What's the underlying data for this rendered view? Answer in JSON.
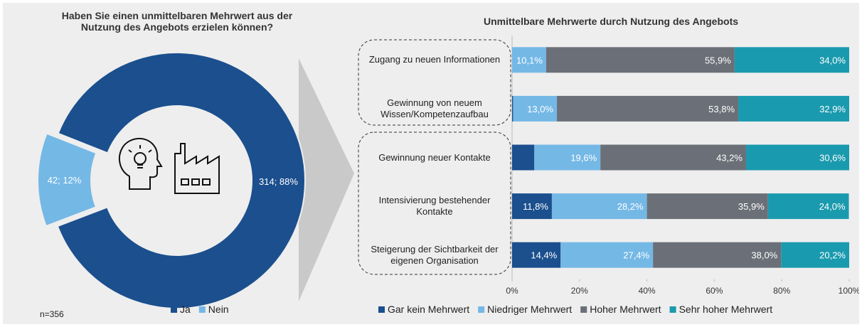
{
  "chart_data": [
    {
      "type": "donut",
      "title": "Haben Sie einen unmittelbaren Mehrwert aus der Nutzung des Angebots erzielen können?",
      "categories": [
        "Ja",
        "Nein"
      ],
      "values": [
        314,
        42
      ],
      "value_labels": [
        "314; 88%",
        "42; 12%"
      ],
      "colors": [
        "#1b4f8e",
        "#74b8e6"
      ],
      "annotation": "n=356",
      "legend": "bottom"
    },
    {
      "type": "stacked_bar_horizontal",
      "title": "Unmittelbare Mehrwerte durch Nutzung des Angebots",
      "categories": [
        "Zugang zu neuen Informationen",
        "Gewinnung von neuem Wissen/Kompetenzaufbau",
        "Gewinnung neuer Kontakte",
        "Intensivierung bestehender Kontakte",
        "Steigerung der Sichtbarkeit der eigenen Organisation"
      ],
      "series": [
        {
          "name": "Gar kein Mehrwert",
          "color": "#1b4f8e",
          "values": [
            0,
            0.3,
            6.6,
            11.8,
            14.4
          ],
          "value_labels": [
            null,
            null,
            null,
            "11,8%",
            "14,4%"
          ]
        },
        {
          "name": "Niedriger Mehrwert",
          "color": "#74b8e6",
          "values": [
            10.1,
            13.0,
            19.6,
            28.2,
            27.4
          ],
          "value_labels": [
            "10,1%",
            "13,0%",
            "19,6%",
            "28,2%",
            "27,4%"
          ]
        },
        {
          "name": "Hoher Mehrwert",
          "color": "#6b6f77",
          "values": [
            55.9,
            53.8,
            43.2,
            35.9,
            38.0
          ],
          "value_labels": [
            "55,9%",
            "53,8%",
            "43,2%",
            "35,9%",
            "38,0%"
          ]
        },
        {
          "name": "Sehr hoher Mehrwert",
          "color": "#1a9aae",
          "values": [
            34.0,
            32.9,
            30.6,
            24.0,
            20.2
          ],
          "value_labels": [
            "34,0%",
            "32,9%",
            "30,6%",
            "24,0%",
            "20,2%"
          ]
        }
      ],
      "xlim": [
        0,
        100
      ],
      "xticks": [
        {
          "value": 0,
          "label": "0%"
        },
        {
          "value": 20,
          "label": "20%"
        },
        {
          "value": 40,
          "label": "40%"
        },
        {
          "value": 60,
          "label": "60%"
        },
        {
          "value": 80,
          "label": "80%"
        },
        {
          "value": 100,
          "label": "100%"
        }
      ],
      "legend": "bottom"
    }
  ]
}
